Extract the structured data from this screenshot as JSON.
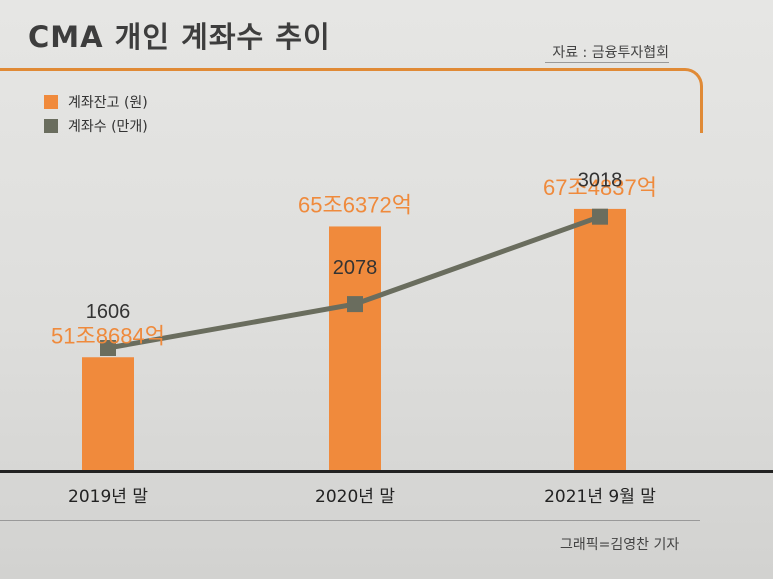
{
  "title": "CMA 개인 계좌수 추이",
  "source": "자료 : 금융투자협회",
  "credit": "그래픽=김영찬 기자",
  "colors": {
    "bar": "#f08a3c",
    "bar_label": "#ef8a3c",
    "line": "#6a6d5e",
    "title": "#3d3d3d"
  },
  "legend": [
    {
      "label": "계좌잔고 (원)",
      "icon": "square-swatch-orange"
    },
    {
      "label": "계좌수 (만개)",
      "icon": "square-swatch-gray"
    }
  ],
  "chart_data": {
    "type": "bar",
    "categories": [
      "2019년 말",
      "2020년 말",
      "2021년 9월 말"
    ],
    "series": [
      {
        "name": "계좌잔고 (원)",
        "values": [
          51.8684,
          65.6372,
          67.4837
        ],
        "labels": [
          "51조8684억",
          "65조6372억",
          "67조4837억"
        ],
        "unit": "조원",
        "axis": "left"
      },
      {
        "name": "계좌수 (만개)",
        "type": "line",
        "values": [
          1606,
          2078,
          3018
        ],
        "labels": [
          "1606",
          "2078",
          "3018"
        ],
        "axis": "right"
      }
    ],
    "title": "CMA 개인 계좌수 추이",
    "legend_position": "top-left",
    "grid": false
  }
}
